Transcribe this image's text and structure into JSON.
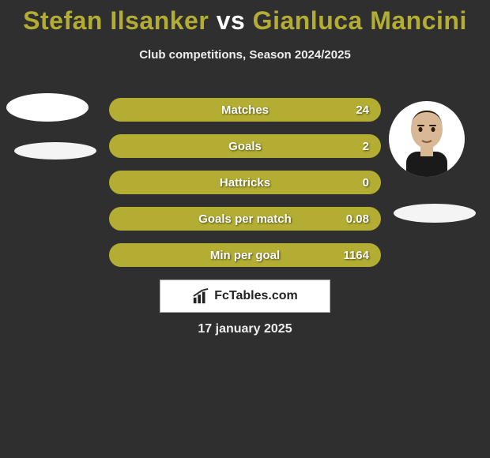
{
  "title": {
    "player1": "Stefan Ilsanker",
    "vs": "vs",
    "player2": "Gianluca Mancini"
  },
  "subtitle": "Club competitions, Season 2024/2025",
  "bars": {
    "fill_color": "#b3ae33",
    "border_color": "#b3ae33",
    "text_color": "#ffffff",
    "height": 30,
    "gap": 16,
    "radius": 16,
    "rows": [
      {
        "label": "Matches",
        "value_right": "24",
        "fill_pct": 100
      },
      {
        "label": "Goals",
        "value_right": "2",
        "fill_pct": 100
      },
      {
        "label": "Hattricks",
        "value_right": "0",
        "fill_pct": 100
      },
      {
        "label": "Goals per match",
        "value_right": "0.08",
        "fill_pct": 100
      },
      {
        "label": "Min per goal",
        "value_right": "1164",
        "fill_pct": 100
      }
    ]
  },
  "logo_text": "FcTables.com",
  "date": "17 january 2025",
  "colors": {
    "background": "#2f2f2f",
    "accent": "#b3ae33",
    "text": "#ffffff"
  }
}
